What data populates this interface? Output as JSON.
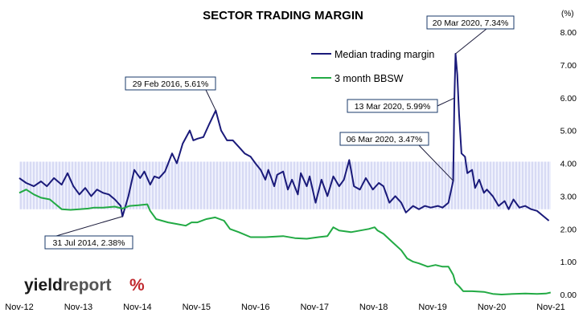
{
  "chart_data": {
    "type": "line",
    "title": "SECTOR TRADING MARGIN",
    "y_unit_label": "(%)",
    "ylim": [
      0,
      8
    ],
    "y_ticks": [
      "0.00",
      "1.00",
      "2.00",
      "3.00",
      "4.00",
      "5.00",
      "6.00",
      "7.00",
      "8.00"
    ],
    "x_ticks": [
      "Nov-12",
      "Nov-13",
      "Nov-14",
      "Nov-15",
      "Nov-16",
      "Nov-17",
      "Nov-18",
      "Nov-19",
      "Nov-20",
      "Nov-21"
    ],
    "x_range": [
      2012.833,
      2021.833
    ],
    "shaded_band": {
      "y_from": 2.6,
      "y_to": 4.05,
      "x_from": 2012.833,
      "x_to": 2021.833,
      "color": "#c8ccf0"
    },
    "legend": {
      "placement": "top-right"
    },
    "series": [
      {
        "name": "Median trading margin",
        "color": "#1a1a7a",
        "points": [
          [
            2012.833,
            3.55
          ],
          [
            2012.95,
            3.4
          ],
          [
            2013.08,
            3.3
          ],
          [
            2013.2,
            3.45
          ],
          [
            2013.3,
            3.3
          ],
          [
            2013.42,
            3.55
          ],
          [
            2013.55,
            3.35
          ],
          [
            2013.65,
            3.7
          ],
          [
            2013.75,
            3.3
          ],
          [
            2013.85,
            3.05
          ],
          [
            2013.95,
            3.25
          ],
          [
            2014.05,
            3.0
          ],
          [
            2014.15,
            3.2
          ],
          [
            2014.25,
            3.1
          ],
          [
            2014.35,
            3.05
          ],
          [
            2014.45,
            2.9
          ],
          [
            2014.55,
            2.7
          ],
          [
            2014.58,
            2.38
          ],
          [
            2014.68,
            3.0
          ],
          [
            2014.78,
            3.8
          ],
          [
            2014.88,
            3.55
          ],
          [
            2014.95,
            3.75
          ],
          [
            2015.05,
            3.35
          ],
          [
            2015.12,
            3.6
          ],
          [
            2015.2,
            3.55
          ],
          [
            2015.3,
            3.75
          ],
          [
            2015.42,
            4.3
          ],
          [
            2015.5,
            4.0
          ],
          [
            2015.6,
            4.6
          ],
          [
            2015.72,
            5.0
          ],
          [
            2015.78,
            4.7
          ],
          [
            2015.85,
            4.75
          ],
          [
            2015.95,
            4.8
          ],
          [
            2016.05,
            5.2
          ],
          [
            2016.16,
            5.61
          ],
          [
            2016.25,
            5.0
          ],
          [
            2016.35,
            4.7
          ],
          [
            2016.45,
            4.7
          ],
          [
            2016.55,
            4.5
          ],
          [
            2016.65,
            4.3
          ],
          [
            2016.75,
            4.2
          ],
          [
            2016.83,
            4.0
          ],
          [
            2016.92,
            3.8
          ],
          [
            2017.0,
            3.5
          ],
          [
            2017.05,
            3.8
          ],
          [
            2017.15,
            3.3
          ],
          [
            2017.2,
            3.65
          ],
          [
            2017.3,
            3.75
          ],
          [
            2017.38,
            3.2
          ],
          [
            2017.45,
            3.5
          ],
          [
            2017.55,
            3.05
          ],
          [
            2017.6,
            3.7
          ],
          [
            2017.7,
            3.3
          ],
          [
            2017.75,
            3.6
          ],
          [
            2017.85,
            2.8
          ],
          [
            2017.95,
            3.5
          ],
          [
            2018.05,
            3.0
          ],
          [
            2018.15,
            3.6
          ],
          [
            2018.25,
            3.3
          ],
          [
            2018.33,
            3.5
          ],
          [
            2018.42,
            4.1
          ],
          [
            2018.5,
            3.3
          ],
          [
            2018.6,
            3.2
          ],
          [
            2018.7,
            3.55
          ],
          [
            2018.82,
            3.2
          ],
          [
            2018.92,
            3.4
          ],
          [
            2019.0,
            3.3
          ],
          [
            2019.1,
            2.8
          ],
          [
            2019.2,
            3.0
          ],
          [
            2019.3,
            2.8
          ],
          [
            2019.38,
            2.5
          ],
          [
            2019.5,
            2.7
          ],
          [
            2019.6,
            2.6
          ],
          [
            2019.7,
            2.7
          ],
          [
            2019.8,
            2.65
          ],
          [
            2019.92,
            2.7
          ],
          [
            2020.0,
            2.65
          ],
          [
            2020.1,
            2.8
          ],
          [
            2020.18,
            3.47
          ],
          [
            2020.2,
            5.99
          ],
          [
            2020.22,
            7.34
          ],
          [
            2020.25,
            6.7
          ],
          [
            2020.28,
            5.5
          ],
          [
            2020.32,
            4.3
          ],
          [
            2020.38,
            4.2
          ],
          [
            2020.42,
            3.7
          ],
          [
            2020.5,
            3.8
          ],
          [
            2020.55,
            3.25
          ],
          [
            2020.62,
            3.5
          ],
          [
            2020.7,
            3.1
          ],
          [
            2020.75,
            3.2
          ],
          [
            2020.85,
            3.0
          ],
          [
            2020.95,
            2.7
          ],
          [
            2021.05,
            2.85
          ],
          [
            2021.12,
            2.6
          ],
          [
            2021.2,
            2.9
          ],
          [
            2021.3,
            2.65
          ],
          [
            2021.4,
            2.7
          ],
          [
            2021.5,
            2.6
          ],
          [
            2021.6,
            2.55
          ],
          [
            2021.7,
            2.4
          ],
          [
            2021.8,
            2.25
          ]
        ]
      },
      {
        "name": "3 month BBSW",
        "color": "#22aa44",
        "points": [
          [
            2012.833,
            3.1
          ],
          [
            2012.95,
            3.2
          ],
          [
            2013.08,
            3.05
          ],
          [
            2013.2,
            2.95
          ],
          [
            2013.35,
            2.9
          ],
          [
            2013.45,
            2.75
          ],
          [
            2013.55,
            2.6
          ],
          [
            2013.7,
            2.58
          ],
          [
            2013.85,
            2.6
          ],
          [
            2014.0,
            2.62
          ],
          [
            2014.1,
            2.65
          ],
          [
            2014.25,
            2.65
          ],
          [
            2014.45,
            2.68
          ],
          [
            2014.58,
            2.62
          ],
          [
            2014.7,
            2.7
          ],
          [
            2014.85,
            2.72
          ],
          [
            2015.0,
            2.75
          ],
          [
            2015.05,
            2.55
          ],
          [
            2015.15,
            2.3
          ],
          [
            2015.35,
            2.2
          ],
          [
            2015.5,
            2.15
          ],
          [
            2015.65,
            2.1
          ],
          [
            2015.75,
            2.2
          ],
          [
            2015.85,
            2.2
          ],
          [
            2016.0,
            2.3
          ],
          [
            2016.15,
            2.35
          ],
          [
            2016.3,
            2.25
          ],
          [
            2016.4,
            2.0
          ],
          [
            2016.55,
            1.9
          ],
          [
            2016.75,
            1.75
          ],
          [
            2017.0,
            1.75
          ],
          [
            2017.3,
            1.78
          ],
          [
            2017.5,
            1.72
          ],
          [
            2017.7,
            1.7
          ],
          [
            2017.9,
            1.75
          ],
          [
            2018.05,
            1.78
          ],
          [
            2018.15,
            2.05
          ],
          [
            2018.25,
            1.95
          ],
          [
            2018.45,
            1.9
          ],
          [
            2018.6,
            1.95
          ],
          [
            2018.75,
            2.0
          ],
          [
            2018.85,
            2.05
          ],
          [
            2018.9,
            1.95
          ],
          [
            2019.0,
            1.85
          ],
          [
            2019.15,
            1.6
          ],
          [
            2019.3,
            1.35
          ],
          [
            2019.4,
            1.1
          ],
          [
            2019.5,
            1.0
          ],
          [
            2019.6,
            0.95
          ],
          [
            2019.75,
            0.85
          ],
          [
            2019.88,
            0.9
          ],
          [
            2020.0,
            0.85
          ],
          [
            2020.1,
            0.85
          ],
          [
            2020.18,
            0.6
          ],
          [
            2020.22,
            0.35
          ],
          [
            2020.28,
            0.25
          ],
          [
            2020.35,
            0.1
          ],
          [
            2020.5,
            0.1
          ],
          [
            2020.7,
            0.08
          ],
          [
            2020.85,
            0.02
          ],
          [
            2021.0,
            0.0
          ],
          [
            2021.2,
            0.02
          ],
          [
            2021.4,
            0.03
          ],
          [
            2021.6,
            0.02
          ],
          [
            2021.75,
            0.03
          ],
          [
            2021.83,
            0.06
          ]
        ]
      }
    ],
    "annotations": [
      {
        "text": "29 Feb 2016,  5.61%",
        "x": 2016.16,
        "y": 5.61
      },
      {
        "text": "31 Jul 2014,  2.38%",
        "x": 2014.58,
        "y": 2.38
      },
      {
        "text": "20 Mar 2020,  7.34%",
        "x": 2020.22,
        "y": 7.34
      },
      {
        "text": "13 Mar 2020,  5.99%",
        "x": 2020.2,
        "y": 5.99
      },
      {
        "text": "06 Mar 2020,  3.47%",
        "x": 2020.18,
        "y": 3.47
      }
    ]
  },
  "branding": {
    "part1": "yield",
    "part2": "report",
    "symbol": "%"
  }
}
